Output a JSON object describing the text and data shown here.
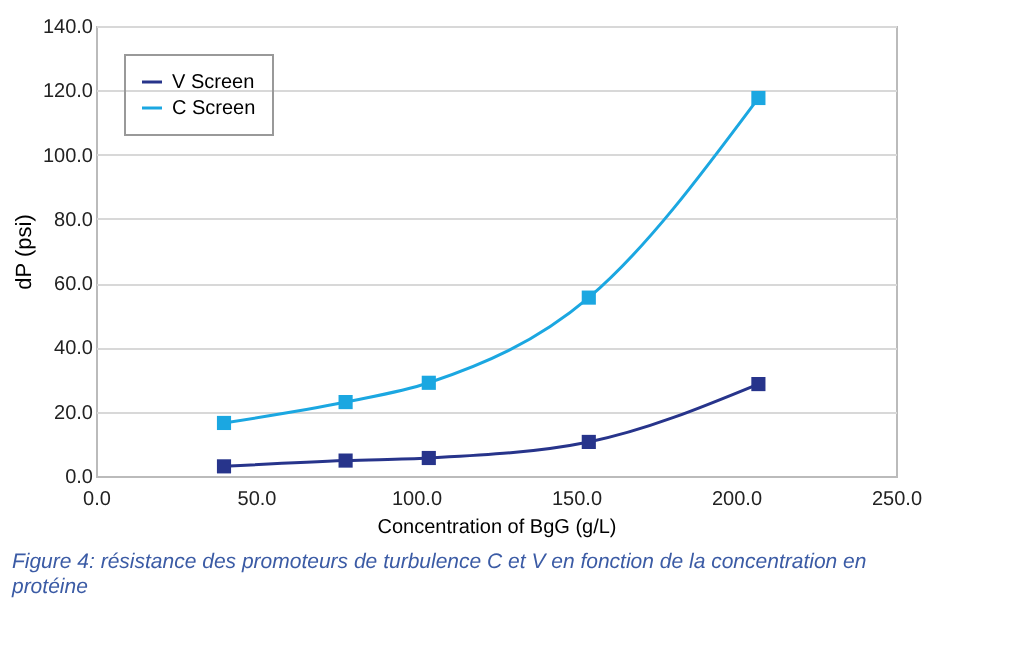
{
  "chart_data": {
    "type": "line",
    "xlabel": "Concentration of BgG (g/L)",
    "ylabel": "dP (psi)",
    "series": [
      {
        "name": "V Screen",
        "color": "#27348b",
        "x": [
          40,
          78,
          104,
          154,
          207
        ],
        "values": [
          3,
          4.8,
          5.6,
          10.6,
          28.6
        ]
      },
      {
        "name": "C Screen",
        "color": "#1ba7e1",
        "x": [
          40,
          78,
          104,
          154,
          207
        ],
        "values": [
          16.5,
          23,
          29,
          55.5,
          117.6
        ]
      }
    ],
    "xlim": [
      0,
      250
    ],
    "xticks": [
      {
        "value": 0,
        "label": "0.0"
      },
      {
        "value": 50,
        "label": "50.0"
      },
      {
        "value": 100,
        "label": "100.0"
      },
      {
        "value": 150,
        "label": "150.0"
      },
      {
        "value": 200,
        "label": "200.0"
      },
      {
        "value": 250,
        "label": "250.0"
      }
    ],
    "ylim": [
      0,
      140
    ],
    "yticks": [
      {
        "value": 0,
        "label": "0.0"
      },
      {
        "value": 20,
        "label": "20.0"
      },
      {
        "value": 40,
        "label": "40.0"
      },
      {
        "value": 60,
        "label": "60.0"
      },
      {
        "value": 80,
        "label": "80.0"
      },
      {
        "value": 100,
        "label": "100.0"
      },
      {
        "value": 120,
        "label": "120.0"
      },
      {
        "value": 140,
        "label": "140.0"
      }
    ],
    "grid": "y",
    "legend": "top left",
    "marker": "square",
    "line_style": "solid",
    "annotations": [
      "Figure 4: résistance des promoteurs de turbulence C et V en fonction de la concentration en protéine"
    ]
  }
}
